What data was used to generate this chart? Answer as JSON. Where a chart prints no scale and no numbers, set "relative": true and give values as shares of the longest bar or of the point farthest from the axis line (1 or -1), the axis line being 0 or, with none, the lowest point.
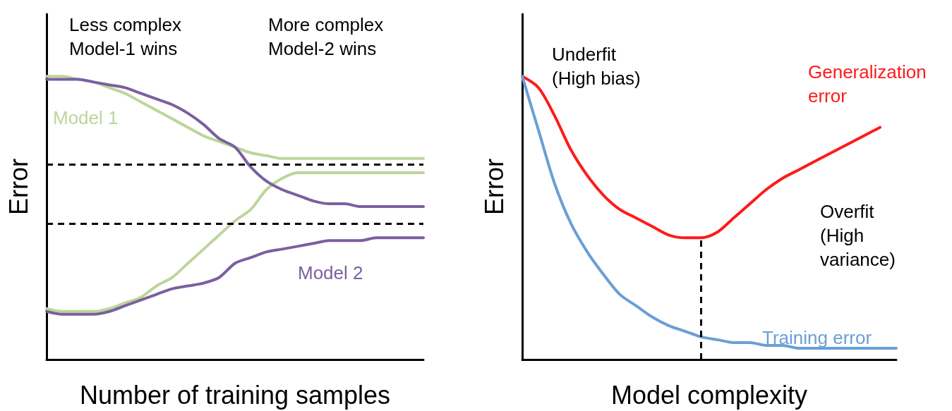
{
  "chart_data": [
    {
      "type": "line",
      "relative": true,
      "xlabel": "Number of training samples",
      "ylabel": "Error",
      "categories": [
        null,
        null,
        null,
        null,
        null,
        null,
        null,
        null,
        null,
        null,
        null,
        null,
        null,
        null,
        null,
        null,
        null,
        null,
        null,
        null,
        null,
        null,
        null,
        null,
        null
      ],
      "series": [
        {
          "name": "Model 1",
          "color": "#bcd69a",
          "values": [
            1.0,
            1.0,
            0.99,
            0.98,
            0.96,
            0.94,
            0.91,
            0.88,
            0.85,
            0.82,
            0.79,
            0.77,
            0.75,
            0.73,
            0.72,
            0.71,
            0.71,
            0.71,
            0.71,
            0.71,
            0.71,
            0.71,
            0.71,
            0.71,
            0.71
          ]
        },
        {
          "color": "#bcd69a",
          "values": [
            0.18,
            0.17,
            0.17,
            0.17,
            0.18,
            0.2,
            0.22,
            0.26,
            0.29,
            0.34,
            0.39,
            0.44,
            0.49,
            0.53,
            0.6,
            0.64,
            0.66,
            0.66,
            0.66,
            0.66,
            0.66,
            0.66,
            0.66,
            0.66,
            0.66
          ]
        },
        {
          "color": "#7b5fa0",
          "values": [
            0.99,
            0.99,
            0.99,
            0.98,
            0.97,
            0.96,
            0.94,
            0.92,
            0.9,
            0.87,
            0.83,
            0.78,
            0.75,
            0.68,
            0.63,
            0.6,
            0.58,
            0.56,
            0.55,
            0.55,
            0.54,
            0.54,
            0.54,
            0.54,
            0.54
          ]
        },
        {
          "name": "Model 2",
          "color": "#7b5fa0",
          "values": [
            0.17,
            0.16,
            0.16,
            0.16,
            0.17,
            0.19,
            0.21,
            0.23,
            0.25,
            0.26,
            0.27,
            0.29,
            0.34,
            0.36,
            0.38,
            0.39,
            0.4,
            0.41,
            0.42,
            0.42,
            0.42,
            0.43,
            0.43,
            0.43,
            0.43
          ]
        }
      ],
      "ref_lines": [
        {
          "axis": "y",
          "value": 0.69,
          "color": "#000000",
          "line_style": "dashed"
        },
        {
          "axis": "y",
          "value": 0.48,
          "color": "#000000",
          "line_style": "dashed"
        }
      ],
      "annotations": [
        "Less complex Model-1 wins",
        "More complex Model-2 wins"
      ]
    },
    {
      "type": "line",
      "relative": true,
      "xlabel": "Model complexity",
      "ylabel": "Error",
      "categories": [
        null,
        null,
        null,
        null,
        null,
        null,
        null,
        null,
        null,
        null,
        null,
        null,
        null,
        null,
        null,
        null,
        null,
        null,
        null,
        null,
        null,
        null,
        null,
        null
      ],
      "series": [
        {
          "name": "Generalization error",
          "color": "#ff1a1a",
          "values": [
            1.0,
            0.96,
            0.86,
            0.74,
            0.65,
            0.58,
            0.53,
            0.5,
            0.47,
            0.44,
            0.43,
            0.43,
            0.45,
            0.5,
            0.55,
            0.6,
            0.64,
            0.67,
            0.7,
            0.73,
            0.76,
            0.79,
            0.82,
            null
          ]
        },
        {
          "name": "Training error",
          "color": "#6a9fd4",
          "values": [
            1.0,
            0.81,
            0.62,
            0.48,
            0.38,
            0.3,
            0.23,
            0.19,
            0.15,
            0.12,
            0.1,
            0.08,
            0.07,
            0.06,
            0.06,
            0.05,
            0.05,
            0.04,
            0.04,
            0.04,
            0.04,
            0.04,
            0.04,
            0.04
          ]
        }
      ],
      "annotations": [
        "Underfit (High bias)",
        "Overfit (High variance)"
      ]
    }
  ]
}
